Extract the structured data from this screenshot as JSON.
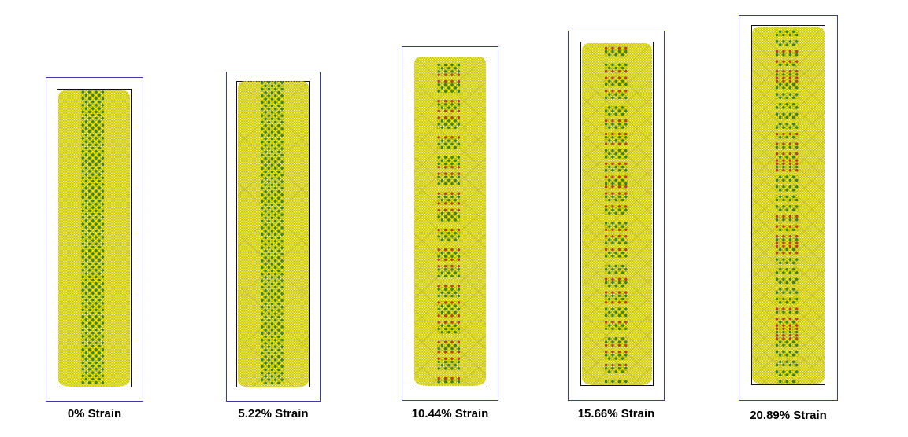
{
  "figure": {
    "panels": [
      {
        "label": "0% Strain",
        "strain_percent": 0
      },
      {
        "label": "5.22% Strain",
        "strain_percent": 5.22
      },
      {
        "label": "10.44% Strain",
        "strain_percent": 10.44
      },
      {
        "label": "15.66% Strain",
        "strain_percent": 15.66
      },
      {
        "label": "20.89% Strain",
        "strain_percent": 20.89
      }
    ]
  },
  "colors": {
    "atom_yellow": "#f2ec00",
    "atom_outline": "#8a8a00",
    "core_green": "#2e8b2e",
    "defect_red": "#e0302a",
    "frame_blue": "#3a3aa8",
    "box_black": "#111111"
  }
}
